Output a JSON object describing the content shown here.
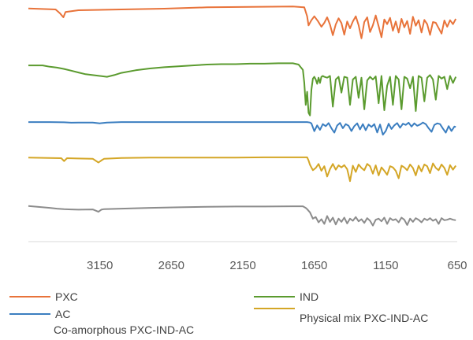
{
  "chart_data": {
    "type": "line",
    "title": "",
    "xlabel": "",
    "ylabel": "",
    "xlim": [
      3650,
      650
    ],
    "x_ticks": [
      "3150",
      "2650",
      "2150",
      "1650",
      "1150",
      "650"
    ],
    "x_tick_values": [
      3150,
      2650,
      2150,
      1650,
      1150,
      650
    ],
    "x_reversed": true,
    "y_axis_visible": false,
    "grid": false,
    "legend_position": "bottom",
    "series": [
      {
        "name": "PXC",
        "color": "#e8733a",
        "x": [
          3650,
          3460,
          3430,
          3405,
          3390,
          3300,
          3000,
          2700,
          2400,
          2100,
          1800,
          1720,
          1700,
          1690,
          1670,
          1650,
          1625,
          1600,
          1580,
          1560,
          1540,
          1520,
          1500,
          1480,
          1460,
          1440,
          1420,
          1400,
          1380,
          1360,
          1340,
          1320,
          1300,
          1280,
          1260,
          1240,
          1220,
          1200,
          1180,
          1160,
          1140,
          1120,
          1100,
          1080,
          1060,
          1040,
          1020,
          1000,
          980,
          960,
          940,
          920,
          900,
          880,
          860,
          840,
          820,
          800,
          780,
          760,
          740,
          720,
          700,
          680,
          660
        ],
        "values": [
          16.0,
          15.6,
          14.2,
          12.6,
          14.6,
          15.3,
          15.6,
          15.9,
          16.4,
          16.6,
          16.7,
          16.4,
          13.0,
          9.5,
          11.5,
          13.0,
          11.2,
          9.0,
          10.5,
          12.6,
          9.8,
          5.8,
          9.9,
          12.2,
          10.4,
          6.0,
          11.0,
          8.4,
          11.0,
          13.0,
          9.6,
          4.6,
          10.8,
          12.6,
          7.0,
          9.6,
          13.3,
          9.2,
          5.0,
          11.8,
          10.0,
          12.4,
          7.5,
          11.0,
          6.8,
          12.0,
          8.8,
          11.2,
          6.3,
          12.8,
          9.4,
          11.5,
          6.8,
          11.6,
          10.0,
          5.9,
          10.8,
          10.5,
          8.5,
          6.4,
          11.4,
          9.0,
          11.5,
          10.0,
          12.0
        ]
      },
      {
        "name": "IND",
        "color": "#5b9b2f",
        "x": [
          3650,
          3550,
          3500,
          3450,
          3400,
          3350,
          3300,
          3250,
          3200,
          3150,
          3100,
          3050,
          3000,
          2900,
          2800,
          2700,
          2600,
          2500,
          2400,
          2300,
          2200,
          2100,
          2000,
          1900,
          1800,
          1760,
          1730,
          1720,
          1710,
          1700,
          1690,
          1680,
          1670,
          1660,
          1650,
          1640,
          1630,
          1620,
          1610,
          1600,
          1590,
          1580,
          1560,
          1540,
          1520,
          1500,
          1480,
          1460,
          1440,
          1420,
          1400,
          1380,
          1360,
          1340,
          1320,
          1300,
          1280,
          1260,
          1240,
          1220,
          1200,
          1180,
          1160,
          1140,
          1120,
          1100,
          1080,
          1060,
          1040,
          1020,
          1000,
          980,
          960,
          940,
          920,
          900,
          880,
          860,
          840,
          820,
          800,
          780,
          760,
          740,
          720,
          700,
          680,
          660
        ],
        "values": [
          12.0,
          12.0,
          11.7,
          11.5,
          11.2,
          10.8,
          10.4,
          10.0,
          9.8,
          9.6,
          9.4,
          9.8,
          10.3,
          10.9,
          11.3,
          11.6,
          11.8,
          12.0,
          12.2,
          12.3,
          12.3,
          12.4,
          12.4,
          12.5,
          12.5,
          12.2,
          11.0,
          8.0,
          3.0,
          6.0,
          1.2,
          0.6,
          6.4,
          9.0,
          9.4,
          8.8,
          7.8,
          9.2,
          8.0,
          9.4,
          9.6,
          9.4,
          9.2,
          9.6,
          2.6,
          8.8,
          9.4,
          5.8,
          9.4,
          9.2,
          3.0,
          8.8,
          9.4,
          4.6,
          9.2,
          2.0,
          8.6,
          9.4,
          8.8,
          9.5,
          3.4,
          9.6,
          1.8,
          7.4,
          9.4,
          3.0,
          9.6,
          8.8,
          2.0,
          9.4,
          9.0,
          6.8,
          9.4,
          1.6,
          9.6,
          9.2,
          3.8,
          9.2,
          9.8,
          8.8,
          4.2,
          9.6,
          9.0,
          9.4,
          6.6,
          9.6,
          8.0,
          9.4
        ]
      },
      {
        "name": "AC",
        "color": "#3b7ec0",
        "x": [
          3650,
          3500,
          3400,
          3350,
          3300,
          3200,
          3150,
          3100,
          3000,
          2800,
          2600,
          2400,
          2200,
          2000,
          1800,
          1700,
          1680,
          1670,
          1650,
          1630,
          1610,
          1590,
          1570,
          1550,
          1530,
          1510,
          1490,
          1470,
          1450,
          1430,
          1410,
          1390,
          1370,
          1350,
          1330,
          1310,
          1290,
          1270,
          1250,
          1230,
          1210,
          1190,
          1170,
          1150,
          1130,
          1110,
          1090,
          1070,
          1050,
          1030,
          1010,
          990,
          970,
          950,
          930,
          910,
          890,
          870,
          850,
          830,
          810,
          790,
          770,
          750,
          730,
          710,
          690,
          670,
          660
        ],
        "values": [
          12.0,
          12.0,
          11.9,
          11.7,
          11.8,
          11.8,
          11.4,
          11.8,
          12.0,
          12.0,
          12.0,
          12.0,
          12.0,
          12.0,
          12.0,
          12.0,
          11.8,
          11.4,
          7.5,
          10.4,
          8.2,
          11.0,
          10.0,
          11.5,
          9.0,
          6.8,
          10.3,
          11.6,
          9.0,
          11.0,
          10.2,
          7.6,
          10.0,
          11.4,
          8.4,
          11.0,
          8.0,
          10.8,
          9.6,
          11.0,
          6.9,
          10.8,
          5.8,
          7.6,
          11.2,
          8.6,
          10.4,
          11.5,
          9.2,
          11.2,
          10.6,
          11.7,
          9.8,
          11.4,
          10.2,
          10.8,
          11.8,
          11.0,
          9.0,
          7.2,
          10.6,
          11.4,
          11.0,
          8.8,
          6.8,
          10.0,
          7.6,
          9.8,
          9.6
        ]
      },
      {
        "name": "Physical mix PXC-IND-AC",
        "color": "#d4a626",
        "x": [
          3650,
          3500,
          3420,
          3400,
          3380,
          3300,
          3200,
          3160,
          3140,
          3120,
          3000,
          2800,
          2600,
          2400,
          2200,
          2000,
          1800,
          1700,
          1690,
          1680,
          1660,
          1640,
          1620,
          1600,
          1580,
          1560,
          1540,
          1520,
          1500,
          1480,
          1460,
          1440,
          1420,
          1400,
          1380,
          1360,
          1340,
          1320,
          1300,
          1280,
          1260,
          1240,
          1220,
          1200,
          1180,
          1160,
          1140,
          1120,
          1100,
          1080,
          1060,
          1040,
          1020,
          1000,
          980,
          960,
          940,
          920,
          900,
          880,
          860,
          840,
          820,
          800,
          780,
          760,
          740,
          720,
          700,
          680,
          660
        ],
        "values": [
          12.0,
          11.9,
          11.8,
          10.8,
          11.8,
          11.7,
          11.6,
          10.3,
          11.0,
          11.6,
          11.9,
          12.0,
          12.0,
          12.0,
          12.0,
          12.1,
          12.1,
          12.1,
          11.0,
          9.5,
          7.6,
          8.4,
          9.8,
          7.4,
          9.0,
          5.4,
          8.0,
          9.8,
          7.8,
          9.3,
          8.6,
          9.4,
          8.0,
          3.8,
          9.2,
          7.0,
          9.6,
          8.4,
          7.6,
          9.8,
          9.0,
          6.4,
          9.3,
          5.8,
          8.6,
          7.4,
          6.0,
          9.0,
          8.6,
          7.4,
          4.8,
          9.2,
          8.6,
          7.6,
          9.6,
          8.4,
          5.8,
          9.2,
          7.2,
          9.6,
          9.0,
          6.6,
          10.0,
          8.4,
          7.6,
          9.6,
          8.4,
          6.0,
          9.4,
          7.8,
          9.2
        ]
      },
      {
        "name": "Co-amorphous PXC-IND-AC",
        "color": "#8c8c8c",
        "x": [
          3650,
          3500,
          3450,
          3400,
          3350,
          3300,
          3200,
          3160,
          3140,
          3120,
          3000,
          2800,
          2600,
          2400,
          2200,
          2000,
          1800,
          1730,
          1710,
          1700,
          1690,
          1680,
          1660,
          1640,
          1620,
          1600,
          1580,
          1560,
          1540,
          1520,
          1500,
          1480,
          1460,
          1440,
          1420,
          1400,
          1380,
          1360,
          1340,
          1320,
          1300,
          1280,
          1260,
          1240,
          1220,
          1200,
          1180,
          1160,
          1140,
          1120,
          1100,
          1080,
          1060,
          1040,
          1020,
          1000,
          980,
          960,
          940,
          920,
          900,
          880,
          860,
          840,
          820,
          800,
          780,
          760,
          740,
          720,
          700,
          680,
          660
        ],
        "values": [
          12.0,
          11.3,
          11.0,
          10.8,
          10.7,
          10.6,
          10.7,
          9.8,
          10.6,
          10.8,
          11.0,
          11.3,
          11.5,
          11.7,
          11.8,
          11.8,
          11.9,
          11.9,
          11.3,
          10.8,
          10.2,
          9.6,
          7.2,
          7.8,
          5.8,
          7.0,
          5.2,
          8.2,
          6.0,
          7.6,
          5.0,
          7.2,
          6.0,
          7.6,
          5.4,
          7.2,
          6.4,
          7.8,
          6.2,
          7.0,
          5.6,
          7.4,
          6.4,
          4.6,
          6.8,
          7.2,
          6.2,
          7.6,
          5.2,
          7.4,
          6.6,
          7.0,
          5.8,
          7.6,
          6.8,
          4.8,
          7.2,
          6.0,
          7.4,
          6.8,
          5.8,
          7.2,
          6.6,
          7.4,
          6.4,
          7.0,
          5.2,
          7.4,
          6.6,
          6.8,
          7.2,
          6.8,
          6.6
        ]
      }
    ]
  }
}
